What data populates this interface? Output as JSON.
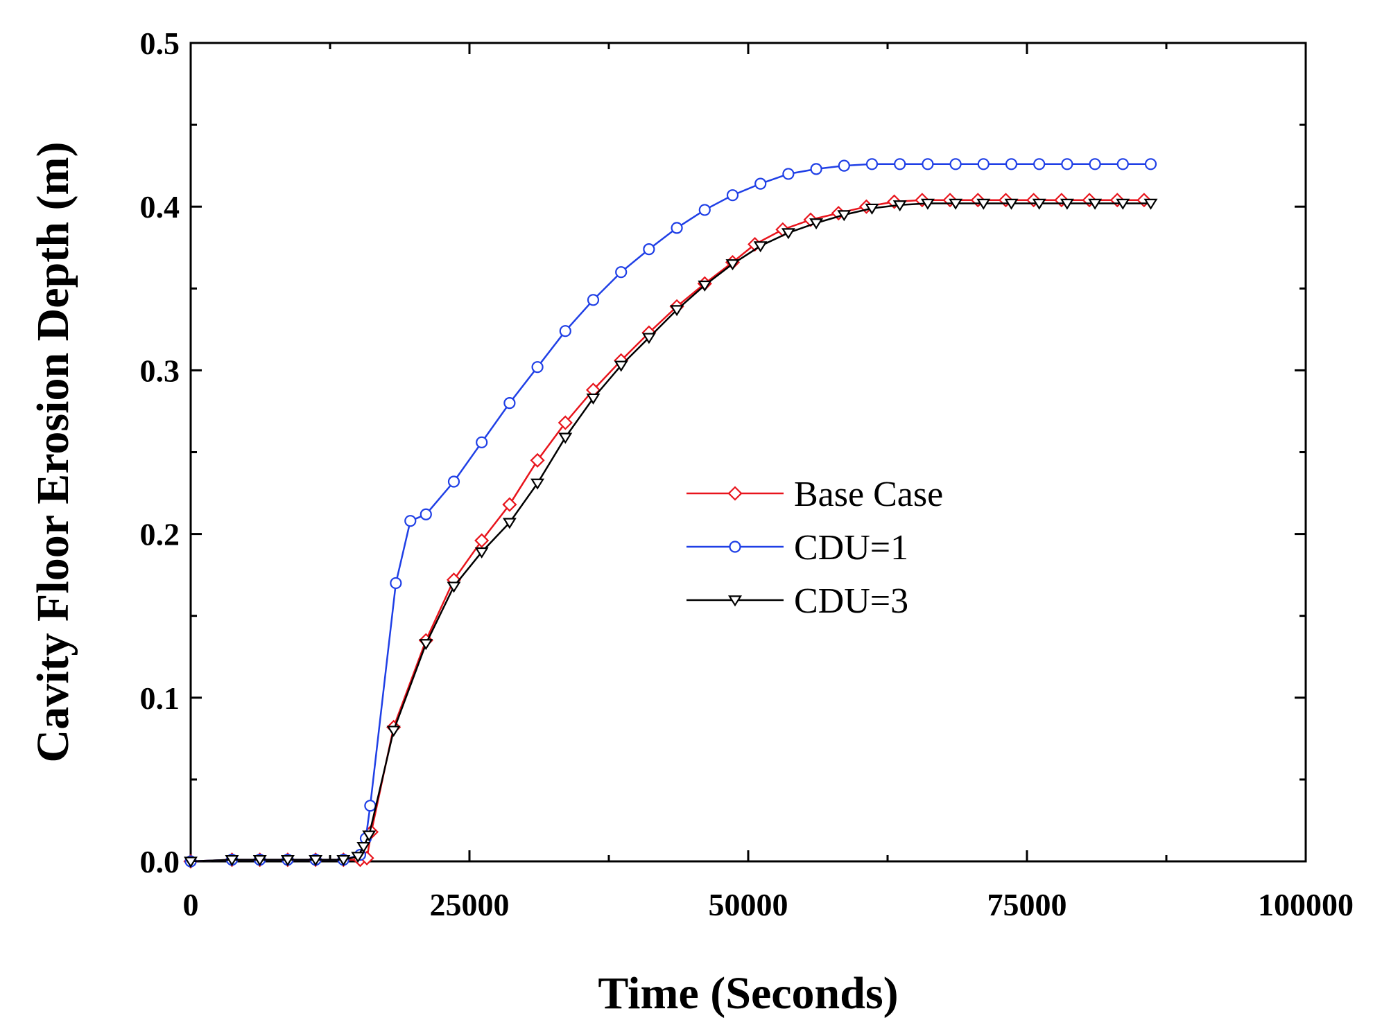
{
  "chart_data": {
    "type": "line",
    "title": "",
    "xlabel": "Time (Seconds)",
    "ylabel": "Cavity Floor Erosion Depth (m)",
    "xlim": [
      0,
      100000
    ],
    "ylim": [
      0.0,
      0.5
    ],
    "xticks": [
      0,
      25000,
      50000,
      75000,
      100000
    ],
    "xtick_labels": [
      "0",
      "25000",
      "50000",
      "75000",
      "100000"
    ],
    "yticks": [
      0.0,
      0.1,
      0.2,
      0.3,
      0.4,
      0.5
    ],
    "ytick_labels": [
      "0.0",
      "0.1",
      "0.2",
      "0.3",
      "0.4",
      "0.5"
    ],
    "grid": false,
    "legend_position": "center-right",
    "series": [
      {
        "name": "Base Case",
        "color": "#e8141c",
        "marker": "diamond",
        "points": [
          [
            0,
            0.0
          ],
          [
            3700,
            0.001
          ],
          [
            6200,
            0.001
          ],
          [
            8700,
            0.001
          ],
          [
            11200,
            0.001
          ],
          [
            13700,
            0.001
          ],
          [
            15200,
            0.001
          ],
          [
            15800,
            0.002
          ],
          [
            16200,
            0.018
          ],
          [
            18200,
            0.082
          ],
          [
            21100,
            0.135
          ],
          [
            23600,
            0.172
          ],
          [
            26100,
            0.196
          ],
          [
            28600,
            0.218
          ],
          [
            31100,
            0.245
          ],
          [
            33600,
            0.268
          ],
          [
            36100,
            0.288
          ],
          [
            38600,
            0.306
          ],
          [
            41100,
            0.323
          ],
          [
            43600,
            0.339
          ],
          [
            46100,
            0.353
          ],
          [
            48600,
            0.366
          ],
          [
            50600,
            0.377
          ],
          [
            53100,
            0.386
          ],
          [
            55600,
            0.392
          ],
          [
            58100,
            0.396
          ],
          [
            60600,
            0.4
          ],
          [
            63100,
            0.403
          ],
          [
            65600,
            0.404
          ],
          [
            68100,
            0.404
          ],
          [
            70600,
            0.404
          ],
          [
            73100,
            0.404
          ],
          [
            75600,
            0.404
          ],
          [
            78100,
            0.404
          ],
          [
            80600,
            0.404
          ],
          [
            83100,
            0.404
          ],
          [
            85500,
            0.404
          ]
        ]
      },
      {
        "name": "CDU=1",
        "color": "#1f3fe6",
        "marker": "circle",
        "points": [
          [
            0,
            0.0
          ],
          [
            3700,
            0.001
          ],
          [
            6200,
            0.001
          ],
          [
            8700,
            0.001
          ],
          [
            11200,
            0.001
          ],
          [
            13700,
            0.001
          ],
          [
            15200,
            0.004
          ],
          [
            15700,
            0.014
          ],
          [
            16100,
            0.034
          ],
          [
            18400,
            0.17
          ],
          [
            19700,
            0.208
          ],
          [
            21100,
            0.212
          ],
          [
            23600,
            0.232
          ],
          [
            26100,
            0.256
          ],
          [
            28600,
            0.28
          ],
          [
            31100,
            0.302
          ],
          [
            33600,
            0.324
          ],
          [
            36100,
            0.343
          ],
          [
            38600,
            0.36
          ],
          [
            41100,
            0.374
          ],
          [
            43600,
            0.387
          ],
          [
            46100,
            0.398
          ],
          [
            48600,
            0.407
          ],
          [
            51100,
            0.414
          ],
          [
            53600,
            0.42
          ],
          [
            56100,
            0.423
          ],
          [
            58600,
            0.425
          ],
          [
            61100,
            0.426
          ],
          [
            63600,
            0.426
          ],
          [
            66100,
            0.426
          ],
          [
            68600,
            0.426
          ],
          [
            71100,
            0.426
          ],
          [
            73600,
            0.426
          ],
          [
            76100,
            0.426
          ],
          [
            78600,
            0.426
          ],
          [
            81100,
            0.426
          ],
          [
            83600,
            0.426
          ],
          [
            86100,
            0.426
          ]
        ]
      },
      {
        "name": "CDU=3",
        "color": "#000000",
        "marker": "triangle-down",
        "points": [
          [
            0,
            0.0
          ],
          [
            3700,
            0.001
          ],
          [
            6200,
            0.001
          ],
          [
            8700,
            0.001
          ],
          [
            11200,
            0.001
          ],
          [
            13700,
            0.001
          ],
          [
            15000,
            0.003
          ],
          [
            15500,
            0.009
          ],
          [
            16000,
            0.016
          ],
          [
            18200,
            0.08
          ],
          [
            21100,
            0.133
          ],
          [
            23600,
            0.168
          ],
          [
            26100,
            0.189
          ],
          [
            28600,
            0.207
          ],
          [
            31100,
            0.231
          ],
          [
            33600,
            0.259
          ],
          [
            36100,
            0.283
          ],
          [
            38600,
            0.303
          ],
          [
            41100,
            0.32
          ],
          [
            43600,
            0.337
          ],
          [
            46100,
            0.352
          ],
          [
            48600,
            0.365
          ],
          [
            51100,
            0.376
          ],
          [
            53600,
            0.384
          ],
          [
            56100,
            0.39
          ],
          [
            58600,
            0.395
          ],
          [
            61100,
            0.399
          ],
          [
            63600,
            0.401
          ],
          [
            66100,
            0.402
          ],
          [
            68600,
            0.402
          ],
          [
            71100,
            0.402
          ],
          [
            73600,
            0.402
          ],
          [
            76100,
            0.402
          ],
          [
            78600,
            0.402
          ],
          [
            81100,
            0.402
          ],
          [
            83600,
            0.402
          ],
          [
            86100,
            0.402
          ]
        ]
      }
    ]
  }
}
